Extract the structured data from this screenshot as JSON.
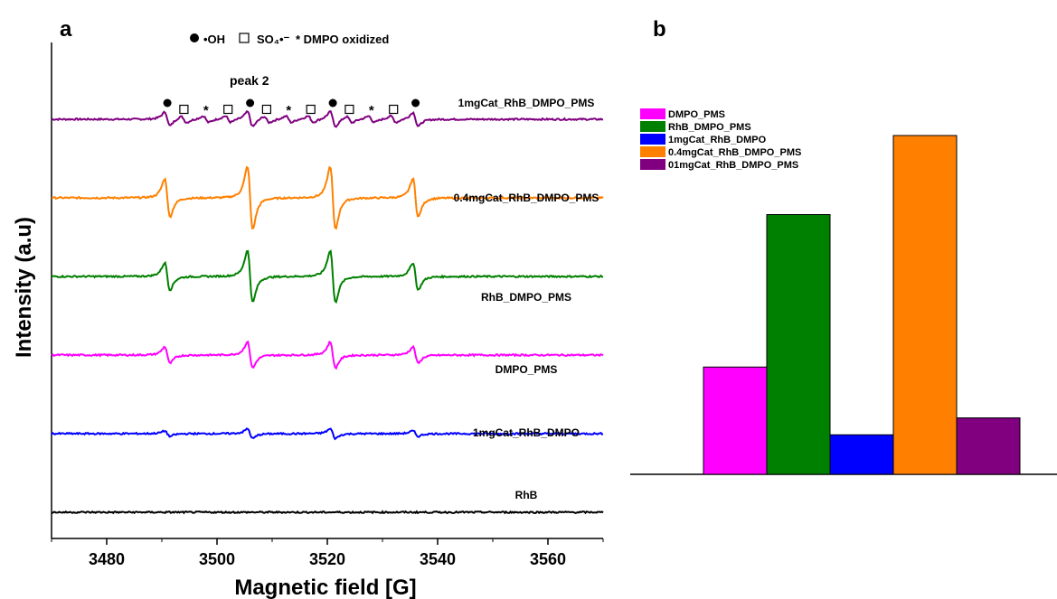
{
  "chart_data": [
    {
      "panel": "a",
      "type": "line",
      "xlabel": "Magnetic field [G]",
      "ylabel": "Intensity (a.u)",
      "xlim": [
        3470,
        3570
      ],
      "xticks": [
        3480,
        3500,
        3520,
        3540,
        3560
      ],
      "grid": false,
      "legend_markers": [
        {
          "symbol": "●",
          "label": "•OH"
        },
        {
          "symbol": "□",
          "label": "SO₄•⁻"
        },
        {
          "symbol": "*",
          "label": "DMPO oxidized"
        }
      ],
      "annotation": "peak 2",
      "peak_centers": [
        3491,
        3506,
        3521,
        3536
      ],
      "markers_on_top_trace": [
        {
          "symbol": "●",
          "x": 3491
        },
        {
          "symbol": "□",
          "x": 3494
        },
        {
          "symbol": "*",
          "x": 3498
        },
        {
          "symbol": "□",
          "x": 3502
        },
        {
          "symbol": "●",
          "x": 3506
        },
        {
          "symbol": "□",
          "x": 3509
        },
        {
          "symbol": "*",
          "x": 3513
        },
        {
          "symbol": "□",
          "x": 3517
        },
        {
          "symbol": "●",
          "x": 3521
        },
        {
          "symbol": "□",
          "x": 3524
        },
        {
          "symbol": "*",
          "x": 3528
        },
        {
          "symbol": "□",
          "x": 3532
        },
        {
          "symbol": "●",
          "x": 3536
        }
      ],
      "series": [
        {
          "name": "1mgCat_RhB_DMPO_PMS",
          "color": "#800080",
          "amplitudes": [
            0.5,
            0.55,
            0.55,
            0.5
          ],
          "baseline_level": 6,
          "extra_peaks": true
        },
        {
          "name": "0.4mgCat_RhB_DMPO_PMS",
          "color": "#ff8000",
          "amplitudes": [
            1.4,
            2.3,
            2.3,
            1.4
          ],
          "baseline_level": 5
        },
        {
          "name": "RhB_DMPO_PMS",
          "color": "#008000",
          "amplitudes": [
            1.0,
            1.9,
            1.9,
            1.0
          ],
          "baseline_level": 4
        },
        {
          "name": "DMPO_PMS",
          "color": "#ff00ff",
          "amplitudes": [
            0.6,
            0.95,
            0.95,
            0.6
          ],
          "baseline_level": 3
        },
        {
          "name": "1mgCat_RhB_DMPO",
          "color": "#0000ff",
          "amplitudes": [
            0.2,
            0.35,
            0.35,
            0.2
          ],
          "baseline_level": 2
        },
        {
          "name": "RhB",
          "color": "#000000",
          "amplitudes": [
            0,
            0,
            0,
            0
          ],
          "baseline_level": 1
        }
      ]
    },
    {
      "panel": "b",
      "type": "bar",
      "categories": [
        "DMPO_PMS",
        "RhB_DMPO_PMS",
        "1mgCat_RhB_DMPO",
        "0.4mgCat_RhB_DMPO_PMS",
        "01mgCat_RhB_DMPO_PMS"
      ],
      "values": [
        0.95,
        2.3,
        0.35,
        3.0,
        0.5
      ],
      "colors": [
        "#ff00ff",
        "#008000",
        "#0000ff",
        "#ff8000",
        "#800080"
      ],
      "ylim": [
        0,
        3.15
      ],
      "legend": "top-left",
      "grid": false
    }
  ],
  "labels": {
    "panel_a": "a",
    "panel_b": "b"
  }
}
